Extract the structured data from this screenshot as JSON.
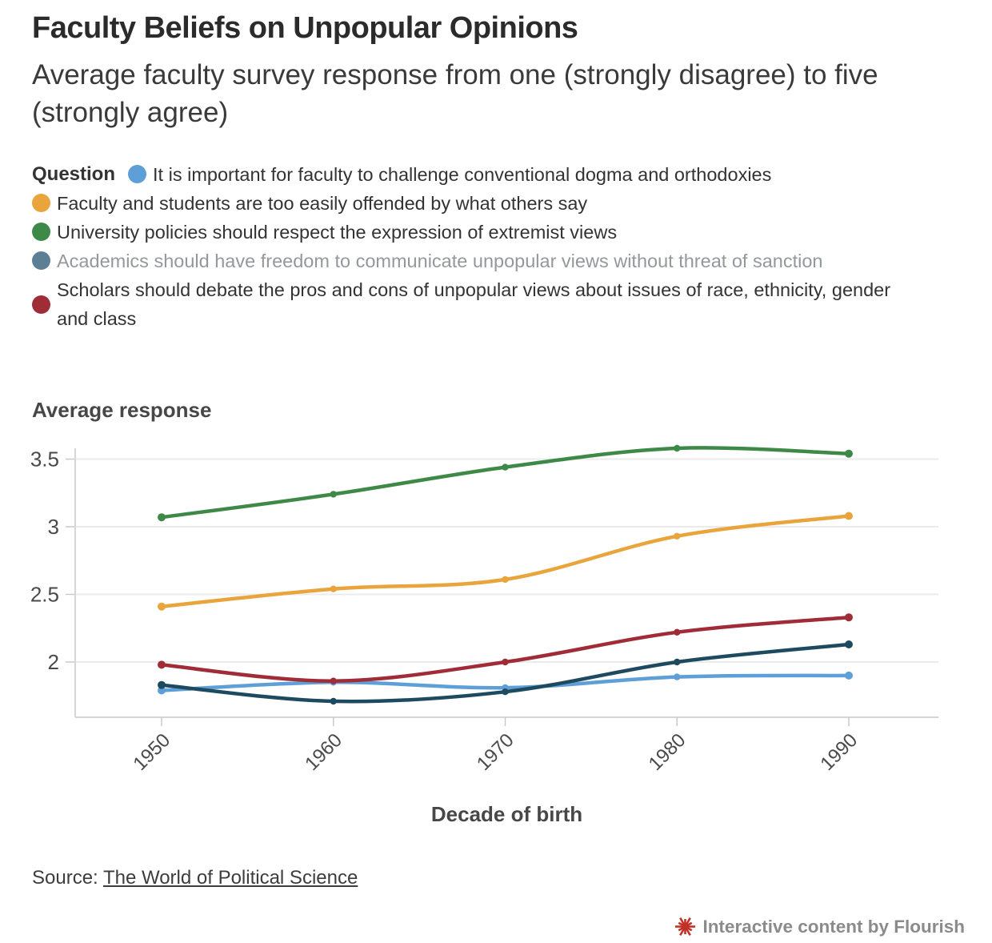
{
  "header": {
    "title": "Faculty Beliefs on Unpopular Opinions",
    "subtitle": "Average faculty survey response from one (strongly disagree) to five (strongly agree)"
  },
  "legend": {
    "label": "Question",
    "items": [
      {
        "label": "It is important for faculty to challenge conventional dogma and orthodoxies",
        "dot_color": "#5f9fd8",
        "muted": false
      },
      {
        "label": "Faculty and students are too easily offended by what others say",
        "dot_color": "#e9a43c",
        "muted": false
      },
      {
        "label": "University policies should respect the expression of extremist views",
        "dot_color": "#3e8947",
        "muted": false
      },
      {
        "label": "Academics should have freedom to communicate unpopular views without threat of sanction",
        "dot_color": "#5c7f96",
        "muted": true
      },
      {
        "label": "Scholars should debate the pros and cons of unpopular views about issues of race, ethnicity, gender and class",
        "dot_color": "#a02c38",
        "muted": false
      }
    ]
  },
  "chart_data": {
    "type": "line",
    "x": [
      "1950",
      "1960",
      "1970",
      "1980",
      "1990"
    ],
    "xlabel": "Decade of birth",
    "ylabel": "Average response",
    "yticks": [
      3.5,
      3,
      2.5,
      2
    ],
    "ylim": [
      1.6,
      3.7
    ],
    "grid": true,
    "legend_position": "top",
    "series": [
      {
        "name": "It is important for faculty to challenge conventional dogma and orthodoxies",
        "color": "#5f9fd8",
        "values": [
          1.79,
          1.85,
          1.81,
          1.89,
          1.9
        ]
      },
      {
        "name": "Faculty and students are too easily offended by what others say",
        "color": "#e9a43c",
        "values": [
          2.41,
          2.54,
          2.61,
          2.93,
          3.08
        ]
      },
      {
        "name": "University policies should respect the expression of extremist views",
        "color": "#3e8947",
        "values": [
          3.07,
          3.24,
          3.44,
          3.58,
          3.54
        ]
      },
      {
        "name": "Academics should have freedom to communicate unpopular views without threat of sanction",
        "color": "#1e4a5f",
        "values": [
          1.83,
          1.71,
          1.78,
          2.0,
          2.13
        ]
      },
      {
        "name": "Scholars should debate the pros and cons of unpopular views about issues of race, ethnicity, gender and class",
        "color": "#a02c38",
        "values": [
          1.98,
          1.86,
          2.0,
          2.22,
          2.33
        ]
      }
    ]
  },
  "source": {
    "prefix": "Source: ",
    "link_text": "The World of Political Science"
  },
  "attribution": {
    "text": "Interactive content by Flourish",
    "icon_color": "#c13127"
  }
}
